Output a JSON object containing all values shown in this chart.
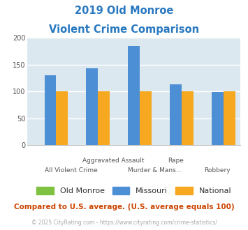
{
  "title_line1": "2019 Old Monroe",
  "title_line2": "Violent Crime Comparison",
  "title_color": "#2878c0",
  "categories": [
    "All Violent Crime",
    "Aggravated Assault",
    "Murder & Mans...",
    "Rape",
    "Robbery"
  ],
  "old_monroe": [
    0,
    0,
    0,
    0,
    0
  ],
  "missouri": [
    130,
    143,
    185,
    113,
    99
  ],
  "national": [
    100,
    100,
    100,
    100,
    100
  ],
  "bar_color_old_monroe": "#7fc241",
  "bar_color_missouri": "#4d8fd4",
  "bar_color_national": "#f5a820",
  "ylim": [
    0,
    200
  ],
  "yticks": [
    0,
    50,
    100,
    150,
    200
  ],
  "plot_bg": "#dce8f0",
  "legend_labels": [
    "Old Monroe",
    "Missouri",
    "National"
  ],
  "footer_text": "Compared to U.S. average. (U.S. average equals 100)",
  "footer_color": "#cc4400",
  "credit_text": "© 2025 CityRating.com - https://www.cityrating.com/crime-statistics/",
  "credit_color": "#aaaaaa",
  "grid_color": "#c8d8e8"
}
